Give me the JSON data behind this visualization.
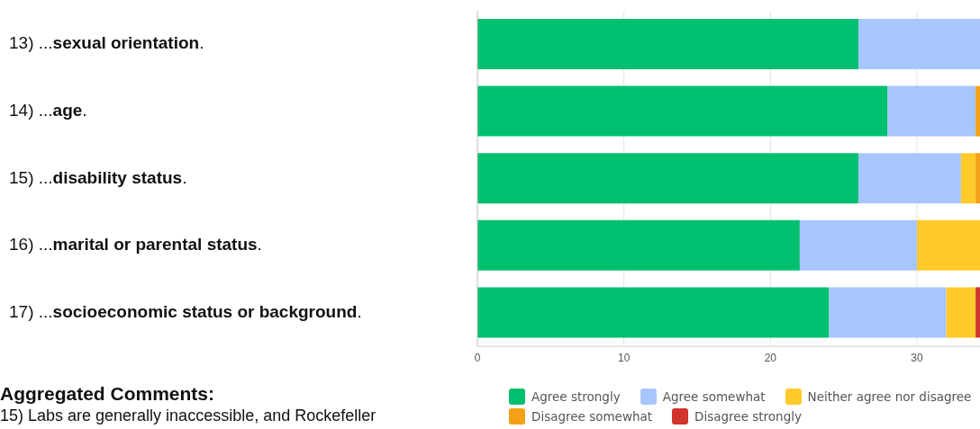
{
  "chart_data": {
    "type": "bar",
    "orientation": "horizontal",
    "stacked": true,
    "categories": [
      "13) ...sexual orientation.",
      "14) ...age.",
      "15) ...disability status.",
      "16) ...marital or parental status.",
      "17) ...socioeconomic status or background."
    ],
    "series": [
      {
        "name": "Agree strongly",
        "color": "#00bf6f",
        "values": [
          26,
          28,
          26,
          22,
          24
        ]
      },
      {
        "name": "Agree somewhat",
        "color": "#a8c6fe",
        "values": [
          8.3,
          6,
          7,
          8,
          8
        ]
      },
      {
        "name": "Neither agree nor disagree",
        "color": "#ffca2a",
        "values": [
          null,
          null,
          1,
          4.3,
          2
        ]
      },
      {
        "name": "Disagree somewhat",
        "color": "#f4a018",
        "values": [
          null,
          0.3,
          0.3,
          null,
          null
        ]
      },
      {
        "name": "Disagree strongly",
        "color": "#d0342c",
        "values": [
          null,
          null,
          null,
          null,
          0.3
        ]
      }
    ],
    "xlim": [
      0,
      34.3
    ],
    "xticks": [
      0,
      10,
      20,
      30
    ],
    "grid": "x",
    "legend": "bottom",
    "annotations": [
      "Aggregated Comments:",
      "15) Labs are generally inaccessible, and Rockefeller"
    ]
  }
}
